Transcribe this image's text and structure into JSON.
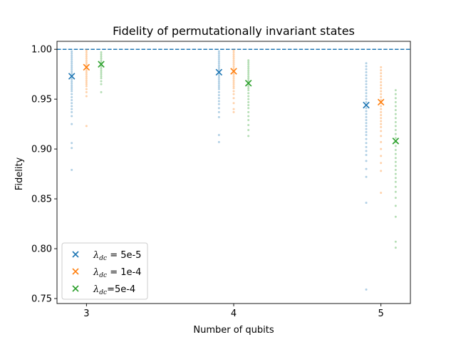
{
  "chart_data": {
    "type": "scatter",
    "title": "Fidelity of permutationally invariant states",
    "xlabel": "Number of qubits",
    "ylabel": "Fidelity",
    "x_categories": [
      "3",
      "4",
      "5"
    ],
    "ylim": [
      0.745,
      1.008
    ],
    "yticks": [
      0.75,
      0.8,
      0.85,
      0.9,
      0.95,
      1.0
    ],
    "ytick_labels": [
      "0.75",
      "0.80",
      "0.85",
      "0.90",
      "0.95",
      "1.00"
    ],
    "reference_line": {
      "y": 1.0,
      "style": "dashed",
      "color": "#1f77b4"
    },
    "legend_position": "lower-left",
    "series": [
      {
        "name": "λ_dc = 5e-5",
        "legend_symbol": "λ",
        "legend_sub": "dc",
        "legend_value": " = 5e-5",
        "color": "#1f77b4",
        "offset": -0.1,
        "means": [
          0.973,
          0.977,
          0.944
        ],
        "points": [
          [
            0.998,
            0.996,
            0.994,
            0.992,
            0.99,
            0.988,
            0.986,
            0.984,
            0.982,
            0.98,
            0.978,
            0.976,
            0.974,
            0.972,
            0.97,
            0.968,
            0.966,
            0.964,
            0.962,
            0.96,
            0.958,
            0.955,
            0.952,
            0.949,
            0.946,
            0.943,
            0.94,
            0.937,
            0.933,
            0.925,
            0.906,
            0.901,
            0.879
          ],
          [
            0.998,
            0.996,
            0.994,
            0.992,
            0.99,
            0.988,
            0.986,
            0.984,
            0.982,
            0.98,
            0.978,
            0.976,
            0.974,
            0.972,
            0.97,
            0.968,
            0.966,
            0.964,
            0.962,
            0.96,
            0.957,
            0.954,
            0.951,
            0.948,
            0.945,
            0.941,
            0.937,
            0.932,
            0.914,
            0.907
          ],
          [
            0.986,
            0.983,
            0.98,
            0.977,
            0.974,
            0.971,
            0.968,
            0.965,
            0.962,
            0.959,
            0.956,
            0.953,
            0.95,
            0.947,
            0.944,
            0.941,
            0.938,
            0.935,
            0.932,
            0.929,
            0.926,
            0.923,
            0.92,
            0.917,
            0.914,
            0.91,
            0.906,
            0.902,
            0.898,
            0.894,
            0.888,
            0.88,
            0.872,
            0.846,
            0.759
          ]
        ]
      },
      {
        "name": "λ_dc = 1e-4",
        "legend_symbol": "λ",
        "legend_sub": "dc",
        "legend_value": " = 1e-4",
        "color": "#ff7f0e",
        "offset": 0.0,
        "means": [
          0.982,
          0.978,
          0.947
        ],
        "points": [
          [
            0.999,
            0.997,
            0.995,
            0.993,
            0.991,
            0.989,
            0.987,
            0.985,
            0.983,
            0.981,
            0.979,
            0.977,
            0.975,
            0.973,
            0.971,
            0.969,
            0.967,
            0.965,
            0.963,
            0.96,
            0.957,
            0.953,
            0.923
          ],
          [
            0.999,
            0.997,
            0.995,
            0.993,
            0.991,
            0.989,
            0.987,
            0.985,
            0.983,
            0.981,
            0.979,
            0.977,
            0.975,
            0.973,
            0.971,
            0.969,
            0.967,
            0.965,
            0.963,
            0.961,
            0.958,
            0.955,
            0.951,
            0.946,
            0.94,
            0.937
          ],
          [
            0.982,
            0.979,
            0.976,
            0.973,
            0.97,
            0.967,
            0.964,
            0.961,
            0.958,
            0.955,
            0.952,
            0.949,
            0.946,
            0.943,
            0.94,
            0.937,
            0.934,
            0.931,
            0.928,
            0.925,
            0.922,
            0.918,
            0.913,
            0.907,
            0.9,
            0.893,
            0.886,
            0.878,
            0.856
          ]
        ]
      },
      {
        "name": "λ_dc = 5e-4",
        "legend_symbol": "λ",
        "legend_sub": "dc",
        "legend_value": "=5e-4",
        "color": "#2ca02c",
        "offset": 0.1,
        "means": [
          0.985,
          0.966,
          0.908
        ],
        "points": [
          [
            0.997,
            0.995,
            0.993,
            0.991,
            0.989,
            0.987,
            0.985,
            0.983,
            0.981,
            0.979,
            0.977,
            0.975,
            0.973,
            0.971,
            0.968,
            0.965,
            0.957
          ],
          [
            0.989,
            0.987,
            0.985,
            0.983,
            0.981,
            0.979,
            0.977,
            0.975,
            0.973,
            0.971,
            0.969,
            0.967,
            0.965,
            0.963,
            0.961,
            0.959,
            0.956,
            0.953,
            0.95,
            0.947,
            0.944,
            0.941,
            0.937,
            0.933,
            0.929,
            0.924,
            0.919,
            0.913
          ],
          [
            0.959,
            0.955,
            0.951,
            0.947,
            0.943,
            0.939,
            0.935,
            0.931,
            0.927,
            0.923,
            0.919,
            0.915,
            0.911,
            0.907,
            0.903,
            0.899,
            0.895,
            0.891,
            0.887,
            0.883,
            0.879,
            0.875,
            0.871,
            0.867,
            0.862,
            0.857,
            0.851,
            0.843,
            0.832,
            0.807,
            0.801
          ]
        ]
      }
    ]
  }
}
